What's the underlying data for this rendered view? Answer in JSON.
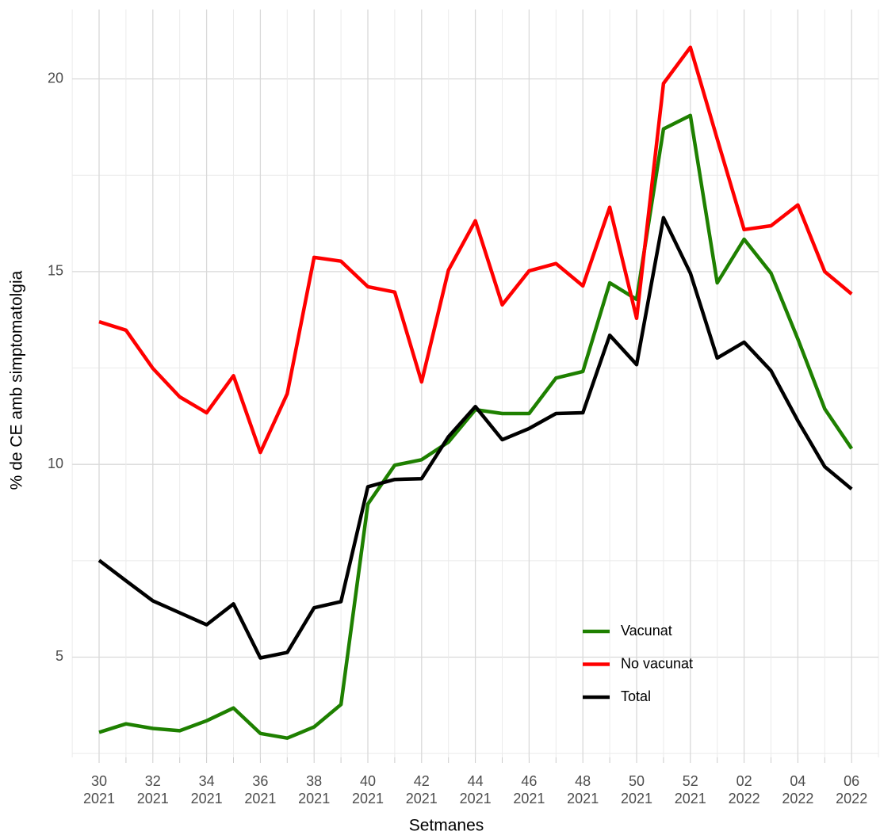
{
  "chart_data": {
    "type": "line",
    "x_label": "Setmanes",
    "y_label": "% de CE amb simptomatolgia",
    "categories": [
      "30\n2021",
      null,
      "32\n2021",
      null,
      "34\n2021",
      null,
      "36\n2021",
      null,
      "38\n2021",
      null,
      "40\n2021",
      null,
      "42\n2021",
      null,
      "44\n2021",
      null,
      "46\n2021",
      null,
      "48\n2021",
      null,
      "50\n2021",
      null,
      "52\n2021",
      null,
      "02\n2022",
      null,
      "04\n2022",
      null,
      "06\n2022"
    ],
    "series": [
      {
        "name": "Vacunat",
        "color": "#1e8000",
        "values": [
          3.05,
          3.27,
          3.15,
          3.09,
          3.35,
          3.68,
          3.02,
          2.9,
          3.19,
          3.77,
          8.97,
          9.98,
          10.12,
          10.58,
          11.42,
          11.32,
          11.32,
          12.24,
          12.41,
          14.71,
          14.28,
          18.7,
          19.05,
          14.71,
          15.84,
          14.96,
          13.25,
          11.44,
          10.41
        ]
      },
      {
        "name": "No vacunat",
        "color": "#ff0000",
        "values": [
          13.7,
          13.48,
          12.49,
          11.75,
          11.34,
          12.3,
          10.31,
          11.83,
          15.37,
          15.27,
          14.61,
          14.47,
          12.14,
          15.04,
          16.32,
          14.14,
          15.02,
          15.21,
          14.63,
          16.67,
          13.79,
          19.88,
          20.82,
          18.44,
          16.09,
          16.19,
          16.73,
          15.0,
          14.42
        ]
      },
      {
        "name": "Total",
        "color": "#000000",
        "values": [
          7.51,
          6.98,
          6.46,
          6.15,
          5.84,
          6.38,
          4.98,
          5.12,
          6.28,
          6.44,
          9.42,
          9.61,
          9.63,
          10.72,
          11.5,
          10.64,
          10.93,
          11.32,
          11.34,
          13.35,
          12.59,
          16.4,
          14.96,
          12.76,
          13.17,
          12.43,
          11.13,
          9.94,
          9.36
        ]
      }
    ],
    "ylim": [
      2.4,
      21.8
    ],
    "yticks": [
      5,
      10,
      15,
      20
    ],
    "minor_yticks": [
      2.5,
      7.5,
      12.5,
      17.5
    ],
    "grid": true,
    "legend_position": "bottom-right"
  }
}
